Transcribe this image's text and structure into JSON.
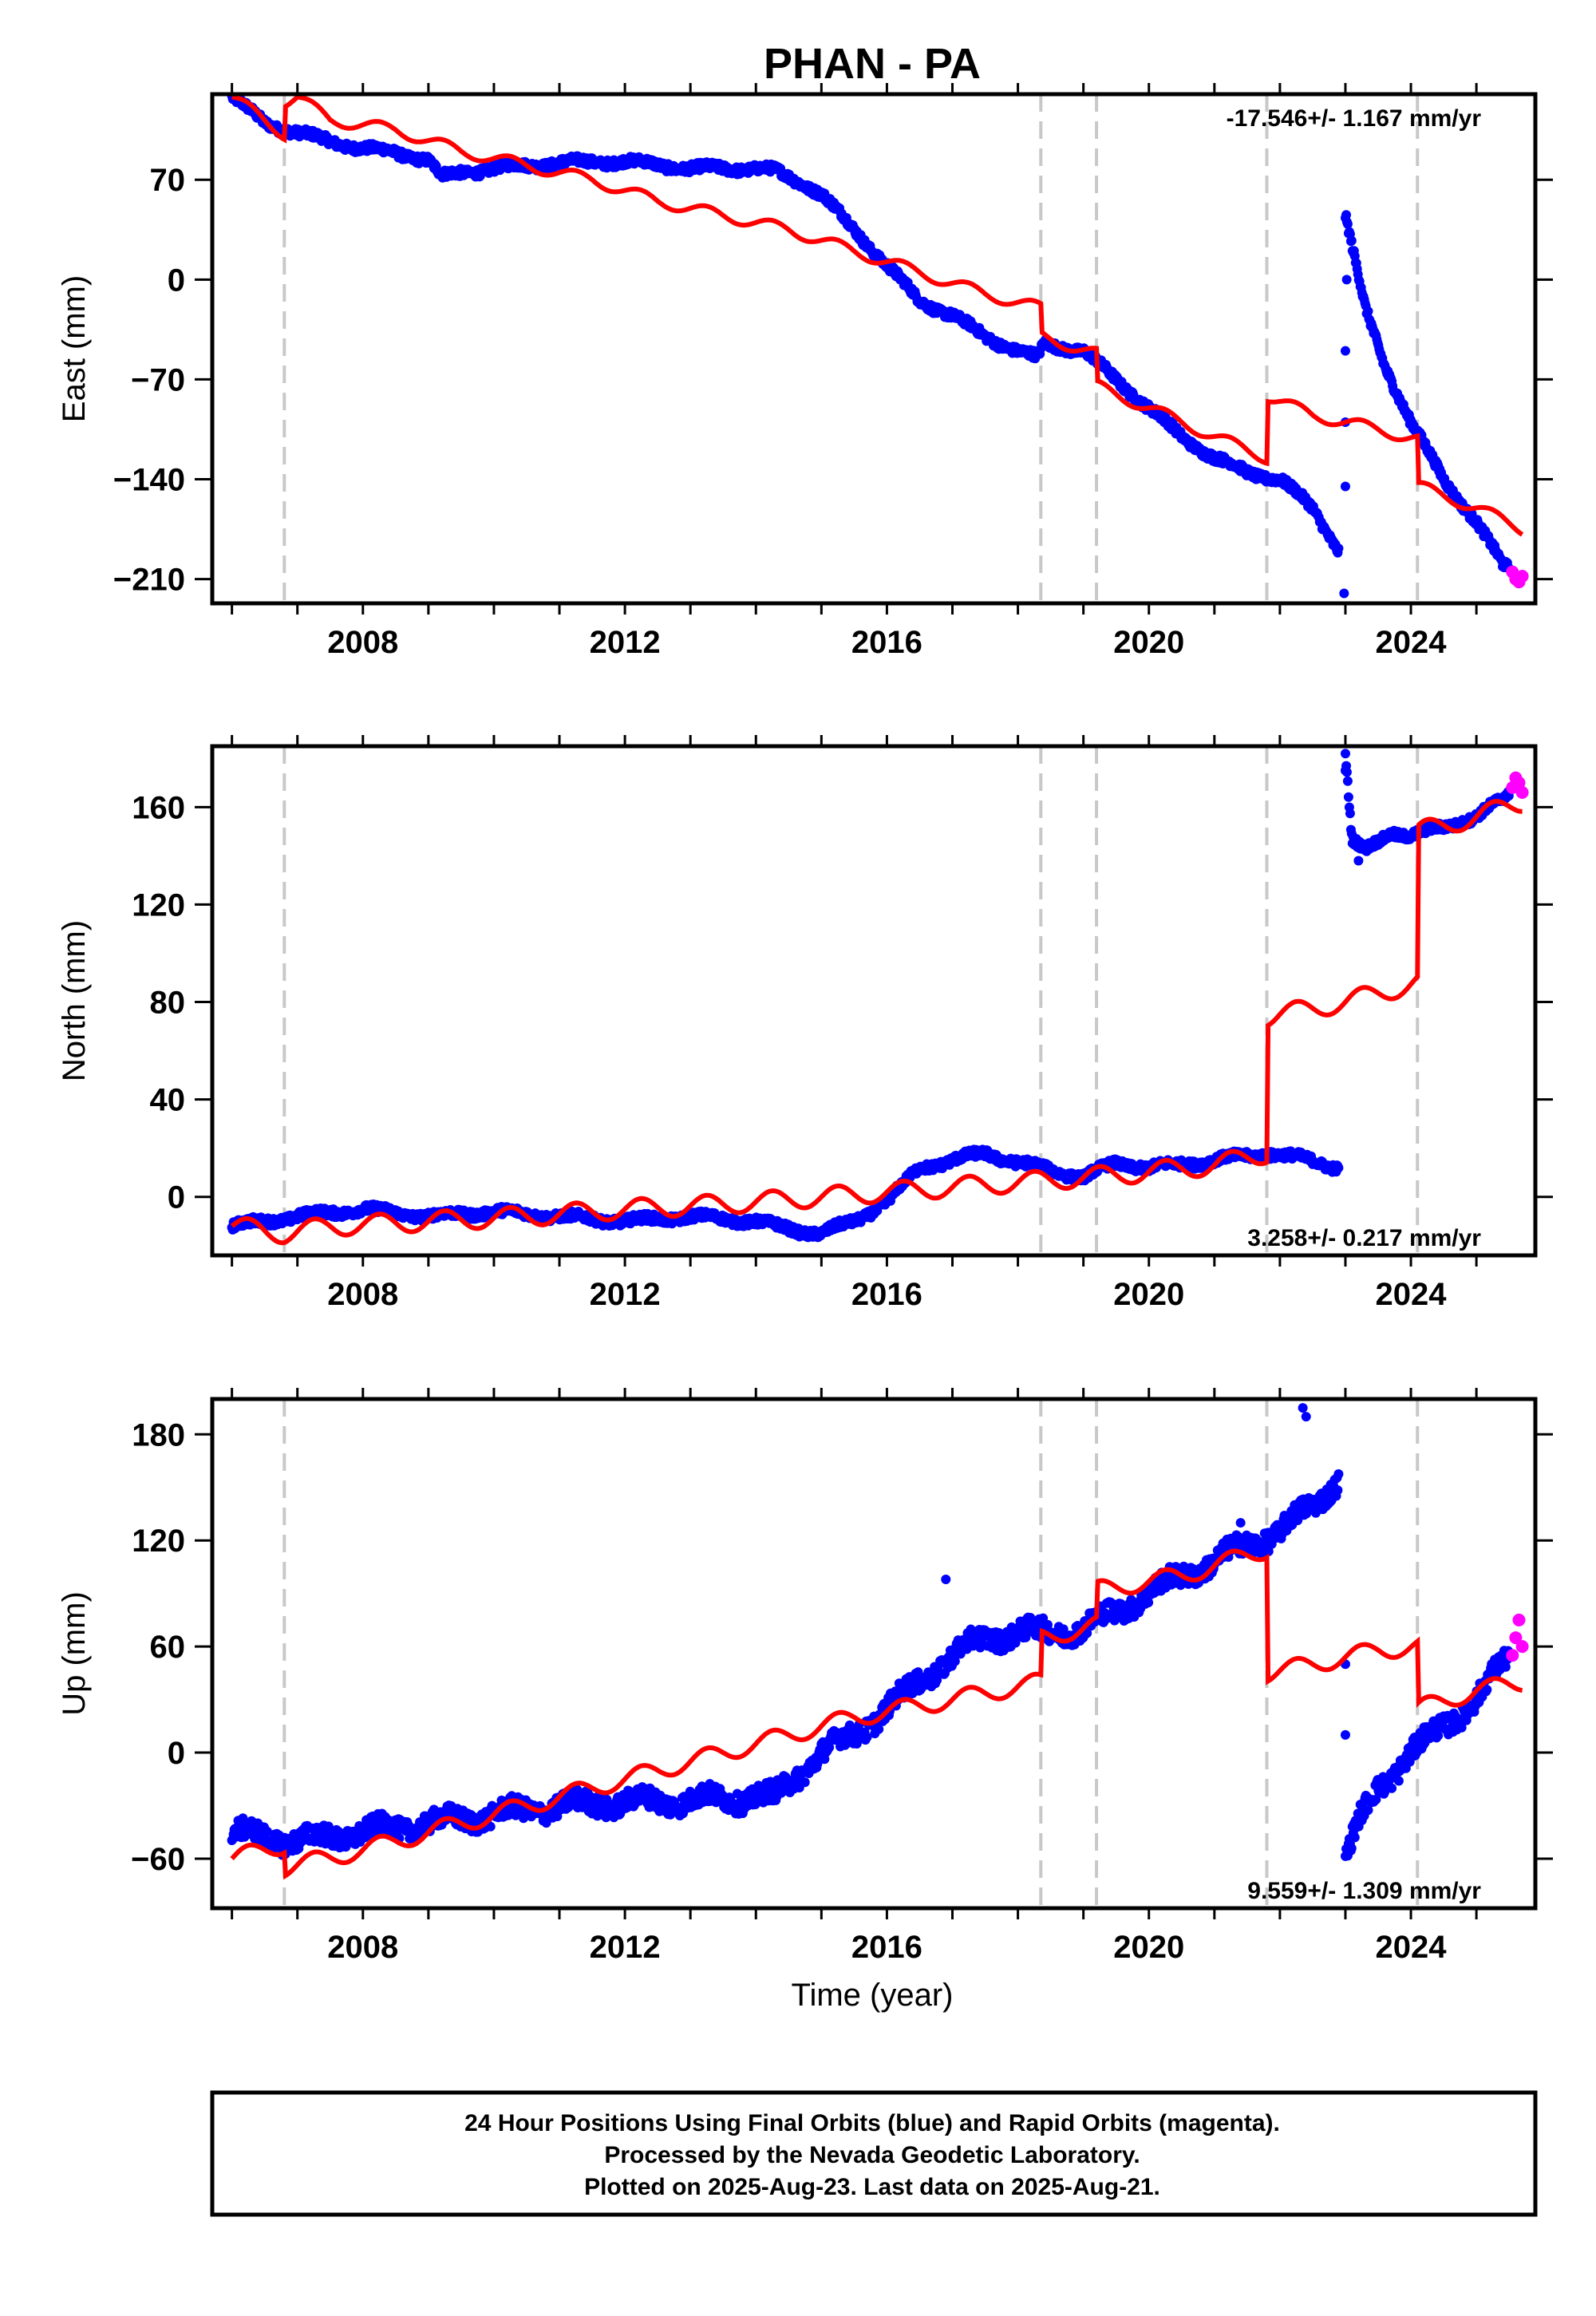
{
  "title": "PHAN - PA",
  "colors": {
    "final": "#0000ff",
    "rapid": "#ff00ff",
    "model": "#ff0000",
    "event": "#c8c8c8"
  },
  "chart_data": [
    {
      "type": "scatter",
      "ylabel": "East (mm)",
      "ylim": [
        -227,
        130
      ],
      "yticks": [
        -210,
        -140,
        -70,
        0,
        70
      ],
      "xlim": [
        2005.7,
        2025.9
      ],
      "xticks": [
        2008,
        2012,
        2016,
        2020,
        2024
      ],
      "rate_text": "-17.546+/- 1.167 mm/yr",
      "events": [
        2006.8,
        2018.35,
        2019.2,
        2021.8,
        2024.1
      ],
      "final_knots": [
        [
          2006.0,
          128
        ],
        [
          2006.5,
          110
        ],
        [
          2007.0,
          103
        ],
        [
          2007.5,
          97
        ],
        [
          2008.0,
          92
        ],
        [
          2008.5,
          89
        ],
        [
          2009.0,
          84
        ],
        [
          2009.2,
          72
        ],
        [
          2009.5,
          75
        ],
        [
          2010.0,
          78
        ],
        [
          2011.0,
          82
        ],
        [
          2012.0,
          83
        ],
        [
          2013.0,
          78
        ],
        [
          2014.0,
          78
        ],
        [
          2014.3,
          76
        ],
        [
          2014.7,
          68
        ],
        [
          2015.0,
          60
        ],
        [
          2015.5,
          35
        ],
        [
          2016.0,
          10
        ],
        [
          2016.5,
          -15
        ],
        [
          2017.0,
          -25
        ],
        [
          2017.5,
          -40
        ],
        [
          2018.0,
          -50
        ],
        [
          2018.3,
          -55
        ],
        [
          2018.4,
          -45
        ],
        [
          2019.0,
          -50
        ],
        [
          2019.5,
          -70
        ],
        [
          2020.0,
          -90
        ],
        [
          2020.5,
          -110
        ],
        [
          2021.0,
          -125
        ],
        [
          2021.5,
          -135
        ],
        [
          2022.0,
          -140
        ],
        [
          2022.5,
          -160
        ],
        [
          2022.9,
          -190
        ]
      ],
      "final_knots_2": [
        [
          2023.0,
          45
        ],
        [
          2023.3,
          -20
        ],
        [
          2023.6,
          -60
        ],
        [
          2024.0,
          -100
        ],
        [
          2024.5,
          -140
        ],
        [
          2025.0,
          -170
        ],
        [
          2025.4,
          -200
        ],
        [
          2025.5,
          -202
        ]
      ],
      "spikes": [
        [
          2022.98,
          -220
        ],
        [
          2023.0,
          -145
        ],
        [
          2023.0,
          -100
        ],
        [
          2023.0,
          -50
        ],
        [
          2023.02,
          0
        ]
      ],
      "rapid": [
        [
          2025.55,
          -205
        ],
        [
          2025.6,
          -210
        ],
        [
          2025.65,
          -212
        ],
        [
          2025.7,
          -208
        ]
      ],
      "model_knots": [
        [
          2006.0,
          128
        ],
        [
          2006.8,
          102
        ],
        [
          2006.82,
          125
        ],
        [
          2007.0,
          128
        ],
        [
          2007.5,
          112
        ],
        [
          2008.5,
          105
        ],
        [
          2009.5,
          90
        ],
        [
          2010.5,
          80
        ],
        [
          2011.5,
          70
        ],
        [
          2012.5,
          55
        ],
        [
          2013.5,
          45
        ],
        [
          2014.5,
          35
        ],
        [
          2015.5,
          20
        ],
        [
          2016.5,
          5
        ],
        [
          2017.5,
          -10
        ],
        [
          2018.35,
          -20
        ],
        [
          2018.37,
          -40
        ],
        [
          2019.2,
          -52
        ],
        [
          2019.22,
          -75
        ],
        [
          2020.0,
          -90
        ],
        [
          2021.0,
          -110
        ],
        [
          2021.8,
          -125
        ],
        [
          2021.82,
          -82
        ],
        [
          2022.5,
          -95
        ],
        [
          2023.5,
          -105
        ],
        [
          2024.1,
          -112
        ],
        [
          2024.12,
          -145
        ],
        [
          2025.0,
          -160
        ],
        [
          2025.7,
          -175
        ]
      ],
      "model_seasonal": 4
    },
    {
      "type": "scatter",
      "ylabel": "North (mm)",
      "ylim": [
        -24,
        185
      ],
      "yticks": [
        0,
        40,
        80,
        120,
        160
      ],
      "xlim": [
        2005.7,
        2025.9
      ],
      "xticks": [
        2008,
        2012,
        2016,
        2020,
        2024
      ],
      "rate_text": "3.258+/- 0.217 mm/yr",
      "events": [
        2006.8,
        2018.35,
        2019.2,
        2021.8,
        2024.1
      ],
      "final_knots": [
        [
          2006.0,
          -12
        ],
        [
          2006.5,
          -10
        ],
        [
          2007.0,
          -8
        ],
        [
          2008.0,
          -5
        ],
        [
          2009.0,
          -8
        ],
        [
          2010.0,
          -6
        ],
        [
          2011.0,
          -8
        ],
        [
          2012.0,
          -10
        ],
        [
          2013.0,
          -8
        ],
        [
          2014.0,
          -10
        ],
        [
          2014.3,
          -12
        ],
        [
          2014.7,
          -14
        ],
        [
          2015.0,
          -15
        ],
        [
          2015.5,
          -10
        ],
        [
          2016.0,
          -2
        ],
        [
          2016.5,
          12
        ],
        [
          2017.0,
          15
        ],
        [
          2017.5,
          18
        ],
        [
          2018.0,
          14
        ],
        [
          2018.35,
          12
        ],
        [
          2019.0,
          8
        ],
        [
          2019.5,
          14
        ],
        [
          2020.0,
          12
        ],
        [
          2021.0,
          15
        ],
        [
          2021.8,
          18
        ],
        [
          2022.5,
          15
        ],
        [
          2022.9,
          12
        ]
      ],
      "final_knots_2": [
        [
          2023.0,
          182
        ],
        [
          2023.1,
          146
        ],
        [
          2023.3,
          142
        ],
        [
          2023.7,
          150
        ],
        [
          2024.0,
          148
        ],
        [
          2024.5,
          152
        ],
        [
          2025.0,
          156
        ],
        [
          2025.5,
          165
        ]
      ],
      "spikes": [
        [
          2023.2,
          138
        ],
        [
          2023.0,
          175
        ]
      ],
      "rapid": [
        [
          2025.55,
          168
        ],
        [
          2025.6,
          172
        ],
        [
          2025.65,
          170
        ],
        [
          2025.7,
          166
        ]
      ],
      "model_knots": [
        [
          2006.0,
          -12
        ],
        [
          2006.8,
          -15
        ],
        [
          2007.5,
          -12
        ],
        [
          2009.0,
          -10
        ],
        [
          2010.5,
          -8
        ],
        [
          2012.0,
          -5
        ],
        [
          2013.5,
          -3
        ],
        [
          2015.0,
          0
        ],
        [
          2016.5,
          3
        ],
        [
          2018.0,
          6
        ],
        [
          2019.5,
          9
        ],
        [
          2021.0,
          13
        ],
        [
          2021.8,
          18
        ],
        [
          2021.82,
          74
        ],
        [
          2023.0,
          80
        ],
        [
          2024.1,
          88
        ],
        [
          2024.12,
          150
        ],
        [
          2025.0,
          156
        ],
        [
          2025.7,
          162
        ]
      ],
      "model_seasonal": 4
    },
    {
      "type": "scatter",
      "ylabel": "Up (mm)",
      "xlabel": "Time (year)",
      "ylim": [
        -88,
        200
      ],
      "yticks": [
        -60,
        0,
        60,
        120,
        180
      ],
      "xlim": [
        2005.7,
        2025.9
      ],
      "xticks": [
        2008,
        2012,
        2016,
        2020,
        2024
      ],
      "rate_text": "9.559+/- 1.309 mm/yr",
      "events": [
        2006.8,
        2018.35,
        2019.2,
        2021.8,
        2024.1
      ],
      "final_knots": [
        [
          2006.0,
          -45
        ],
        [
          2007.0,
          -50
        ],
        [
          2008.0,
          -45
        ],
        [
          2009.0,
          -40
        ],
        [
          2010.0,
          -35
        ],
        [
          2011.0,
          -30
        ],
        [
          2012.0,
          -28
        ],
        [
          2013.0,
          -27
        ],
        [
          2014.0,
          -25
        ],
        [
          2014.3,
          -25
        ],
        [
          2014.7,
          -10
        ],
        [
          2015.0,
          0
        ],
        [
          2015.5,
          10
        ],
        [
          2016.0,
          25
        ],
        [
          2016.5,
          40
        ],
        [
          2017.0,
          55
        ],
        [
          2017.5,
          65
        ],
        [
          2018.0,
          68
        ],
        [
          2018.5,
          68
        ],
        [
          2019.0,
          70
        ],
        [
          2019.5,
          80
        ],
        [
          2020.0,
          90
        ],
        [
          2020.5,
          100
        ],
        [
          2021.0,
          108
        ],
        [
          2021.5,
          118
        ],
        [
          2022.0,
          125
        ],
        [
          2022.5,
          140
        ],
        [
          2022.9,
          155
        ]
      ],
      "final_knots_2": [
        [
          2023.0,
          -60
        ],
        [
          2023.2,
          -40
        ],
        [
          2023.5,
          -20
        ],
        [
          2024.0,
          0
        ],
        [
          2024.5,
          15
        ],
        [
          2025.0,
          30
        ],
        [
          2025.5,
          55
        ]
      ],
      "spikes": [
        [
          2022.4,
          190
        ],
        [
          2022.35,
          195
        ],
        [
          2016.9,
          98
        ],
        [
          2021.4,
          130
        ],
        [
          2023.0,
          50
        ],
        [
          2023.0,
          10
        ]
      ],
      "rapid": [
        [
          2025.55,
          55
        ],
        [
          2025.6,
          65
        ],
        [
          2025.65,
          75
        ],
        [
          2025.7,
          60
        ]
      ],
      "model_knots": [
        [
          2006.0,
          -60
        ],
        [
          2006.8,
          -52
        ],
        [
          2006.82,
          -65
        ],
        [
          2008.0,
          -55
        ],
        [
          2009.5,
          -40
        ],
        [
          2011.0,
          -25
        ],
        [
          2012.5,
          -10
        ],
        [
          2014.0,
          5
        ],
        [
          2015.5,
          20
        ],
        [
          2017.0,
          30
        ],
        [
          2018.35,
          40
        ],
        [
          2018.37,
          65
        ],
        [
          2019.2,
          72
        ],
        [
          2019.22,
          92
        ],
        [
          2020.5,
          100
        ],
        [
          2021.8,
          115
        ],
        [
          2021.82,
          45
        ],
        [
          2022.5,
          50
        ],
        [
          2023.5,
          58
        ],
        [
          2024.1,
          60
        ],
        [
          2024.12,
          25
        ],
        [
          2025.0,
          35
        ],
        [
          2025.7,
          40
        ]
      ],
      "model_seasonal": 5
    }
  ],
  "footer": {
    "line1": "24 Hour Positions Using Final Orbits (blue) and Rapid Orbits (magenta).",
    "line2": "Processed by the Nevada Geodetic Laboratory.",
    "line3": "Plotted on 2025-Aug-23. Last data on 2025-Aug-21."
  }
}
